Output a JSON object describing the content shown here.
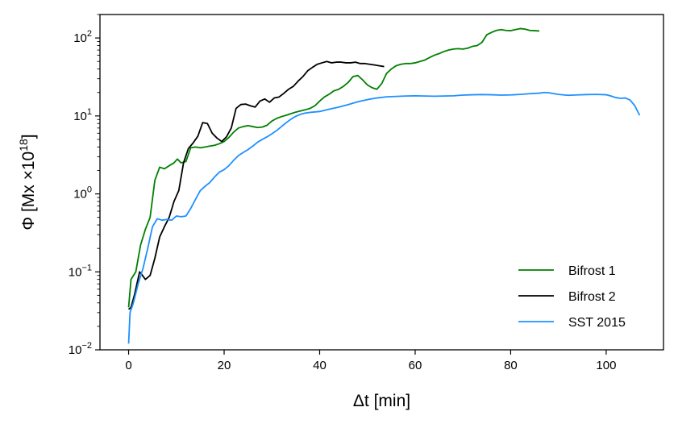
{
  "chart_data": {
    "type": "line",
    "xlabel": "Δt [min]",
    "ylabel_main": "Φ [Mx ×10",
    "ylabel_sup": "18",
    "ylabel_end": "]",
    "y_scale": "log",
    "xlim": [
      -6,
      112
    ],
    "ylim": [
      0.01,
      200
    ],
    "x_ticks": [
      0,
      20,
      40,
      60,
      80,
      100
    ],
    "x_tick_labels": [
      "0",
      "20",
      "40",
      "60",
      "80",
      "100"
    ],
    "y_ticks": [
      0.01,
      0.1,
      1,
      10,
      100
    ],
    "y_tick_labels": [
      {
        "base": "10",
        "exp": "−2"
      },
      {
        "base": "10",
        "exp": "−1"
      },
      {
        "base": "10",
        "exp": "0"
      },
      {
        "base": "10",
        "exp": "1"
      },
      {
        "base": "10",
        "exp": "2"
      }
    ],
    "legend": {
      "position": "lower-right"
    },
    "series": [
      {
        "name": "Bifrost 1",
        "color": "#008000",
        "points": [
          [
            0,
            0.035
          ],
          [
            0.5,
            0.08
          ],
          [
            1.5,
            0.1
          ],
          [
            2.5,
            0.22
          ],
          [
            3.5,
            0.35
          ],
          [
            4.5,
            0.5
          ],
          [
            5.5,
            1.5
          ],
          [
            6.5,
            2.2
          ],
          [
            7.5,
            2.1
          ],
          [
            8.5,
            2.3
          ],
          [
            9.5,
            2.5
          ],
          [
            10.2,
            2.8
          ],
          [
            11,
            2.5
          ],
          [
            12,
            2.6
          ],
          [
            13,
            3.9
          ],
          [
            14,
            4.0
          ],
          [
            15,
            3.9
          ],
          [
            16,
            4.0
          ],
          [
            17,
            4.1
          ],
          [
            18,
            4.2
          ],
          [
            19,
            4.4
          ],
          [
            20,
            4.7
          ],
          [
            21,
            5.3
          ],
          [
            22,
            6.2
          ],
          [
            23,
            7.0
          ],
          [
            24,
            7.3
          ],
          [
            25,
            7.5
          ],
          [
            26,
            7.3
          ],
          [
            27,
            7.1
          ],
          [
            28,
            7.2
          ],
          [
            29,
            7.6
          ],
          [
            30,
            8.6
          ],
          [
            31,
            9.3
          ],
          [
            32,
            9.8
          ],
          [
            33,
            10.2
          ],
          [
            34,
            10.7
          ],
          [
            35,
            11.2
          ],
          [
            36,
            11.6
          ],
          [
            37,
            12
          ],
          [
            38,
            12.5
          ],
          [
            39,
            13.5
          ],
          [
            40,
            15.5
          ],
          [
            41,
            17.5
          ],
          [
            42,
            19
          ],
          [
            43,
            21
          ],
          [
            44,
            22
          ],
          [
            45,
            24
          ],
          [
            46,
            27
          ],
          [
            47,
            32
          ],
          [
            48,
            33
          ],
          [
            49,
            29
          ],
          [
            50,
            25
          ],
          [
            51,
            23
          ],
          [
            52,
            22
          ],
          [
            53,
            26
          ],
          [
            54,
            35
          ],
          [
            55,
            40
          ],
          [
            56,
            44
          ],
          [
            57,
            46
          ],
          [
            58,
            47
          ],
          [
            59,
            47
          ],
          [
            60,
            48
          ],
          [
            61,
            50
          ],
          [
            62,
            52
          ],
          [
            63,
            56
          ],
          [
            64,
            60
          ],
          [
            65,
            63
          ],
          [
            66,
            67
          ],
          [
            67,
            70
          ],
          [
            68,
            72
          ],
          [
            69,
            73
          ],
          [
            70,
            72
          ],
          [
            71,
            74
          ],
          [
            72,
            78
          ],
          [
            73,
            80
          ],
          [
            74,
            88
          ],
          [
            75,
            110
          ],
          [
            76,
            118
          ],
          [
            77,
            125
          ],
          [
            78,
            128
          ],
          [
            79,
            125
          ],
          [
            80,
            124
          ],
          [
            81,
            128
          ],
          [
            82,
            132
          ],
          [
            83,
            130
          ],
          [
            84,
            125
          ],
          [
            85,
            124
          ],
          [
            86,
            123
          ]
        ]
      },
      {
        "name": "Bifrost 2",
        "color": "#000000",
        "points": [
          [
            0,
            0.033
          ],
          [
            0.5,
            0.035
          ],
          [
            1.2,
            0.05
          ],
          [
            2.3,
            0.1
          ],
          [
            2.9,
            0.09
          ],
          [
            3.5,
            0.08
          ],
          [
            4.5,
            0.09
          ],
          [
            5.5,
            0.15
          ],
          [
            6.5,
            0.28
          ],
          [
            7.5,
            0.38
          ],
          [
            8.5,
            0.5
          ],
          [
            9.5,
            0.8
          ],
          [
            10.5,
            1.1
          ],
          [
            11.5,
            2.5
          ],
          [
            12.5,
            3.8
          ],
          [
            13.5,
            4.5
          ],
          [
            14.5,
            5.5
          ],
          [
            15.5,
            8.2
          ],
          [
            16.5,
            8.0
          ],
          [
            17.5,
            6.0
          ],
          [
            18.5,
            5.2
          ],
          [
            19.5,
            4.7
          ],
          [
            20.5,
            5.4
          ],
          [
            21.5,
            7.0
          ],
          [
            22.5,
            12.5
          ],
          [
            23.5,
            14.0
          ],
          [
            24.5,
            14.2
          ],
          [
            25.5,
            13.5
          ],
          [
            26.5,
            13.0
          ],
          [
            27.5,
            15.5
          ],
          [
            28.5,
            16.5
          ],
          [
            29.5,
            15.0
          ],
          [
            30.5,
            17.0
          ],
          [
            31.5,
            17.5
          ],
          [
            32.5,
            19.5
          ],
          [
            33.5,
            22
          ],
          [
            34.5,
            24
          ],
          [
            35.5,
            28
          ],
          [
            36.5,
            32
          ],
          [
            37.5,
            38
          ],
          [
            38.5,
            42
          ],
          [
            39.5,
            46
          ],
          [
            40.5,
            48
          ],
          [
            41.5,
            50
          ],
          [
            42.5,
            48
          ],
          [
            43.5,
            49
          ],
          [
            44.5,
            49
          ],
          [
            45.5,
            48
          ],
          [
            46.5,
            48
          ],
          [
            47.5,
            49
          ],
          [
            48.5,
            47
          ],
          [
            49.5,
            47
          ],
          [
            50.5,
            46
          ],
          [
            51.5,
            45
          ],
          [
            52.5,
            44
          ],
          [
            53.5,
            43
          ]
        ]
      },
      {
        "name": "SST 2015",
        "color": "#1E90FF",
        "points": [
          [
            0,
            0.012
          ],
          [
            0.3,
            0.03
          ],
          [
            1,
            0.04
          ],
          [
            2,
            0.07
          ],
          [
            3,
            0.11
          ],
          [
            4,
            0.2
          ],
          [
            5,
            0.38
          ],
          [
            6,
            0.48
          ],
          [
            7,
            0.46
          ],
          [
            8,
            0.47
          ],
          [
            9,
            0.46
          ],
          [
            10,
            0.52
          ],
          [
            11,
            0.51
          ],
          [
            12,
            0.52
          ],
          [
            13,
            0.65
          ],
          [
            14,
            0.85
          ],
          [
            15,
            1.1
          ],
          [
            16,
            1.25
          ],
          [
            17,
            1.4
          ],
          [
            18,
            1.65
          ],
          [
            19,
            1.9
          ],
          [
            20,
            2.05
          ],
          [
            21,
            2.3
          ],
          [
            22,
            2.7
          ],
          [
            23,
            3.1
          ],
          [
            24,
            3.4
          ],
          [
            25,
            3.7
          ],
          [
            26,
            4.1
          ],
          [
            27,
            4.6
          ],
          [
            28,
            5.0
          ],
          [
            29,
            5.4
          ],
          [
            30,
            5.9
          ],
          [
            31,
            6.5
          ],
          [
            32,
            7.3
          ],
          [
            33,
            8.2
          ],
          [
            34,
            9.1
          ],
          [
            35,
            9.9
          ],
          [
            36,
            10.5
          ],
          [
            37,
            10.9
          ],
          [
            38,
            11.1
          ],
          [
            40,
            11.4
          ],
          [
            42,
            12.2
          ],
          [
            44,
            13.0
          ],
          [
            46,
            14.0
          ],
          [
            48,
            15.2
          ],
          [
            50,
            16.2
          ],
          [
            52,
            17.0
          ],
          [
            54,
            17.6
          ],
          [
            56,
            17.8
          ],
          [
            58,
            18.0
          ],
          [
            60,
            18.1
          ],
          [
            62,
            18.0
          ],
          [
            64,
            17.9
          ],
          [
            66,
            18.0
          ],
          [
            68,
            18.1
          ],
          [
            70,
            18.5
          ],
          [
            72,
            18.7
          ],
          [
            74,
            18.8
          ],
          [
            76,
            18.7
          ],
          [
            78,
            18.5
          ],
          [
            80,
            18.6
          ],
          [
            82,
            18.9
          ],
          [
            84,
            19.3
          ],
          [
            86,
            19.6
          ],
          [
            87,
            20.0
          ],
          [
            88,
            19.8
          ],
          [
            90,
            18.9
          ],
          [
            92,
            18.4
          ],
          [
            94,
            18.6
          ],
          [
            96,
            18.8
          ],
          [
            98,
            18.9
          ],
          [
            100,
            18.7
          ],
          [
            101,
            18.0
          ],
          [
            102,
            17.2
          ],
          [
            103,
            16.8
          ],
          [
            104,
            17.0
          ],
          [
            105,
            16.0
          ],
          [
            106,
            13.5
          ],
          [
            107,
            10.2
          ]
        ]
      }
    ]
  }
}
